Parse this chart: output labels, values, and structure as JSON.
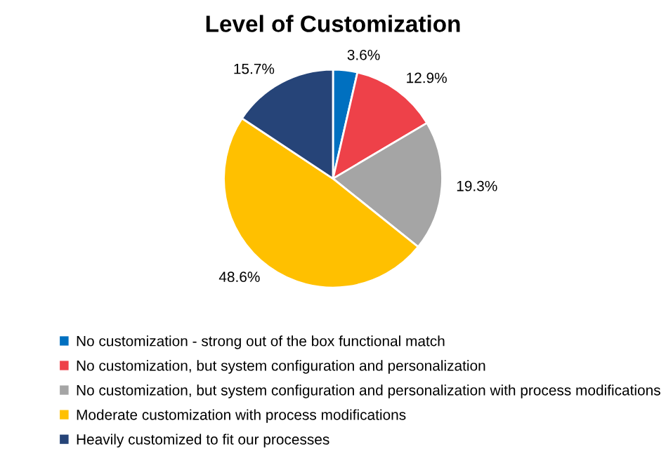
{
  "chart_data": {
    "type": "pie",
    "title": "Level of Customization",
    "categories": [
      "No customization - strong out of the box functional match",
      "No customization, but system configuration and personalization",
      "No customization, but system configuration and personalization with process modifications",
      "Moderate customization with process modifications",
      "Heavily customized to fit our processes"
    ],
    "values": [
      3.6,
      12.9,
      19.3,
      48.6,
      15.7
    ],
    "value_labels": [
      "3.6%",
      "12.9%",
      "19.3%",
      "48.6%",
      "15.7%"
    ],
    "colors": [
      "#0070c0",
      "#ee4149",
      "#a5a5a5",
      "#ffc000",
      "#264478"
    ],
    "legend": "bottom"
  }
}
